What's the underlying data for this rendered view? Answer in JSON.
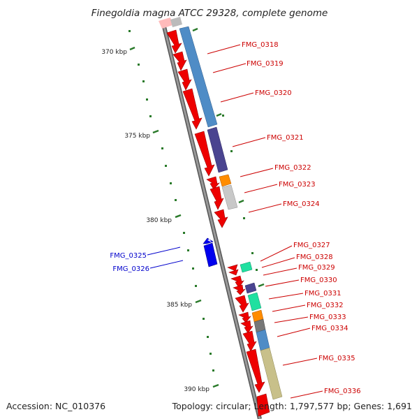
{
  "title": "Finegoldia magna ATCC 29328, complete genome",
  "footer": {
    "accession": "Accession: NC_010376",
    "summary": "Topology: circular; Length: 1,797,577 bp; Genes: 1,691"
  },
  "colors": {
    "backbone": "#888888",
    "tick": "#2a7a2a",
    "forward_label": "#cc0000",
    "reverse_label": "#0000cc",
    "cds_red": "#ee0000",
    "reverse_blue": "#0000ee"
  },
  "ticks": [
    {
      "label": "370 kbp"
    },
    {
      "label": "375 kbp"
    },
    {
      "label": "380 kbp"
    },
    {
      "label": "385 kbp"
    },
    {
      "label": "390 kbp"
    }
  ],
  "genes": [
    {
      "name": "FMG_0318"
    },
    {
      "name": "FMG_0319"
    },
    {
      "name": "FMG_0320"
    },
    {
      "name": "FMG_0321"
    },
    {
      "name": "FMG_0322"
    },
    {
      "name": "FMG_0323"
    },
    {
      "name": "FMG_0324"
    },
    {
      "name": "FMG_0325"
    },
    {
      "name": "FMG_0326"
    },
    {
      "name": "FMG_0327"
    },
    {
      "name": "FMG_0328"
    },
    {
      "name": "FMG_0329"
    },
    {
      "name": "FMG_0330"
    },
    {
      "name": "FMG_0331"
    },
    {
      "name": "FMG_0332"
    },
    {
      "name": "FMG_0333"
    },
    {
      "name": "FMG_0334"
    },
    {
      "name": "FMG_0335"
    },
    {
      "name": "FMG_0336"
    }
  ]
}
